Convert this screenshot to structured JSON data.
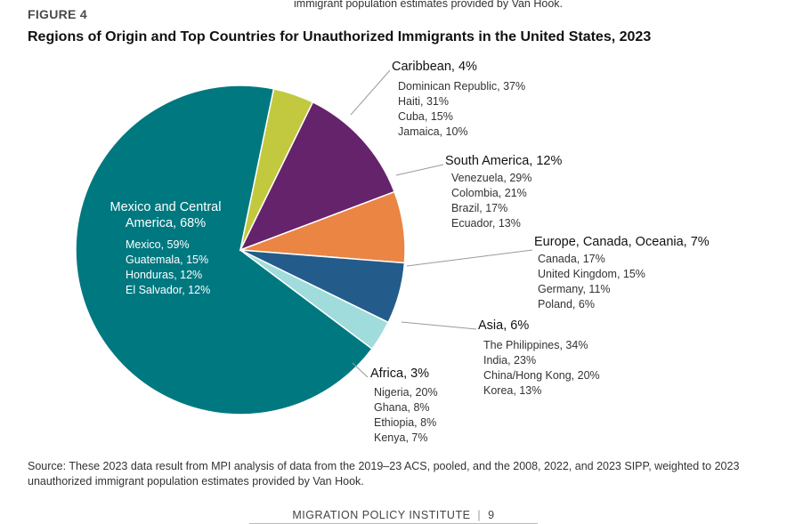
{
  "header": {
    "top_text": "immigrant population estimates provided by Van Hook.",
    "figure_label": "FIGURE 4",
    "title": "Regions of Origin and Top Countries for Unauthorized Immigrants in the United States, 2023"
  },
  "chart_data": {
    "type": "pie",
    "title": "Regions of Origin and Top Countries for Unauthorized Immigrants in the United States, 2023",
    "slices": [
      {
        "name": "Mexico and Central America, 68%",
        "value": 68,
        "color": "#007880",
        "countries": [
          "Mexico, 59%",
          "Guatemala, 15%",
          "Honduras, 12%",
          "El Salvador, 12%"
        ]
      },
      {
        "name": "Caribbean, 4%",
        "value": 4,
        "color": "#c2c93f",
        "countries": [
          "Dominican Republic, 37%",
          "Haiti, 31%",
          "Cuba, 15%",
          "Jamaica, 10%"
        ]
      },
      {
        "name": "South America, 12%",
        "value": 12,
        "color": "#65236b",
        "countries": [
          "Venezuela, 29%",
          "Colombia, 21%",
          "Brazil, 17%",
          "Ecuador, 13%"
        ]
      },
      {
        "name": "Europe, Canada, Oceania, 7%",
        "value": 7,
        "color": "#ea8543",
        "countries": [
          "Canada, 17%",
          "United Kingdom, 15%",
          "Germany, 11%",
          "Poland, 6%"
        ]
      },
      {
        "name": "Asia, 6%",
        "value": 6,
        "color": "#235c8a",
        "countries": [
          "The Philippines, 34%",
          "India, 23%",
          "China/Hong Kong, 20%",
          "Korea, 13%"
        ]
      },
      {
        "name": "Africa, 3%",
        "value": 3,
        "color": "#9fdcdb",
        "countries": [
          "Nigeria, 20%",
          "Ghana, 8%",
          "Ethiopia, 8%",
          "Kenya, 7%"
        ]
      }
    ]
  },
  "source": "Source: These 2023 data result from MPI analysis of data from the 2019–23 ACS, pooled, and the 2008, 2022, and 2023 SIPP, weighted to 2023 unauthorized immigrant population estimates provided by Van Hook.",
  "footer": {
    "org": "MIGRATION POLICY INSTITUTE",
    "separator": "|",
    "page": "9"
  }
}
